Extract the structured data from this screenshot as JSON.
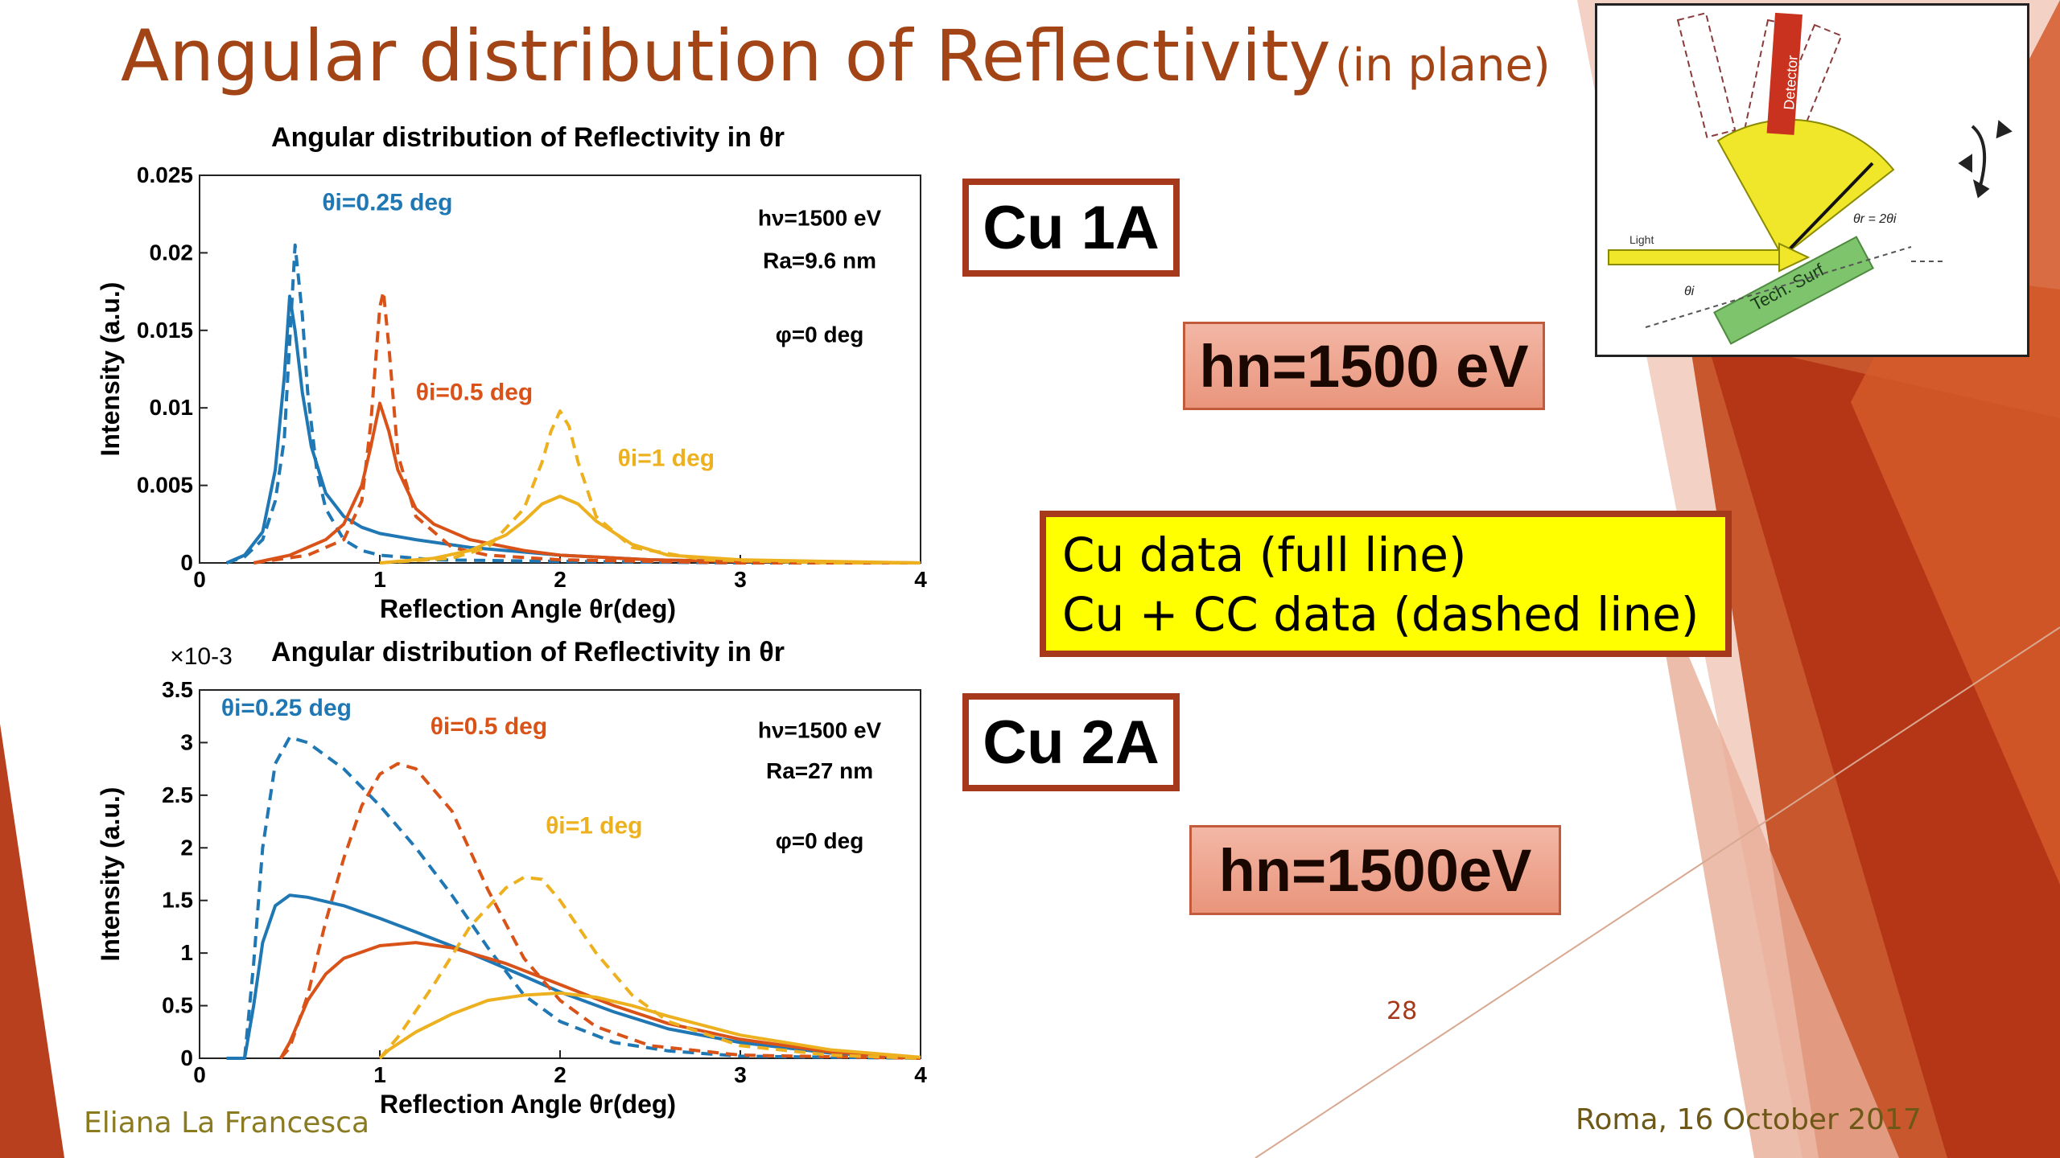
{
  "slide": {
    "title_main": "Angular distribution of Reflectivity",
    "title_sub": "(in plane)",
    "author": "Eliana La Francesca",
    "date": "Roma, 16 October 2017",
    "page_number": "28",
    "cu1_label": "Cu 1A",
    "cu2_label": "Cu 2A",
    "hn1_label": "hn=1500 eV",
    "hn2_label": "hn=1500eV",
    "legend_line1": "Cu data (full line)",
    "legend_line2": "Cu + CC data (dashed line)",
    "colors": {
      "accent": "#a6381c",
      "title": "#a24416",
      "legend_bg": "#ffff00"
    }
  },
  "inset": {
    "detector": "Detector",
    "light": "Light",
    "surface": "Tech. Surf",
    "theta_r": "θr = 2θi",
    "theta_i": "θi"
  },
  "chart_data": [
    {
      "type": "line",
      "title": "Angular distribution of Reflectivity in θr",
      "xlabel": "Reflection Angle θr(deg)",
      "ylabel": "Intensity (a.u.)",
      "xlim": [
        0,
        4
      ],
      "ylim": [
        0,
        0.025
      ],
      "xticks": [
        "0",
        "1",
        "2",
        "3",
        "4"
      ],
      "yticks": [
        "0",
        "0.005",
        "0.01",
        "0.015",
        "0.02",
        "0.025"
      ],
      "annotations": [
        "hν=1500 eV",
        "Ra=9.6 nm",
        "φ=0 deg"
      ],
      "series": [
        {
          "name": "θi=0.25 deg",
          "color": "#1f77b4",
          "dash": false,
          "x": [
            0.15,
            0.25,
            0.35,
            0.42,
            0.47,
            0.5,
            0.53,
            0.57,
            0.62,
            0.7,
            0.8,
            0.9,
            1.0,
            1.2,
            1.5,
            2.0,
            2.5,
            3.0,
            4.0
          ],
          "y": [
            0,
            0.0005,
            0.002,
            0.006,
            0.012,
            0.0172,
            0.015,
            0.011,
            0.0075,
            0.0045,
            0.003,
            0.0023,
            0.0019,
            0.0015,
            0.001,
            0.0005,
            0.0002,
            0.0001,
            0
          ]
        },
        {
          "name": "θi=0.25 deg",
          "color": "#1f77b4",
          "dash": true,
          "x": [
            0.15,
            0.25,
            0.35,
            0.42,
            0.47,
            0.53,
            0.57,
            0.6,
            0.65,
            0.7,
            0.8,
            0.9,
            1.0,
            1.3,
            2.0,
            3.0,
            4.0
          ],
          "y": [
            0,
            0.0004,
            0.0015,
            0.004,
            0.008,
            0.0205,
            0.016,
            0.011,
            0.006,
            0.0035,
            0.0015,
            0.0008,
            0.0005,
            0.0002,
            0.0001,
            0,
            0
          ]
        },
        {
          "name": "θi=0.5 deg",
          "color": "#d95319",
          "dash": false,
          "x": [
            0.3,
            0.5,
            0.7,
            0.8,
            0.9,
            0.95,
            1.0,
            1.05,
            1.1,
            1.2,
            1.3,
            1.5,
            1.8,
            2.0,
            2.5,
            3.0,
            4.0
          ],
          "y": [
            0,
            0.0005,
            0.0015,
            0.0025,
            0.005,
            0.0075,
            0.0103,
            0.0085,
            0.006,
            0.0035,
            0.0025,
            0.0015,
            0.0008,
            0.0005,
            0.0002,
            0.0001,
            0
          ]
        },
        {
          "name": "θi=0.5 deg",
          "color": "#d95319",
          "dash": true,
          "x": [
            0.3,
            0.6,
            0.8,
            0.9,
            0.95,
            1.0,
            1.02,
            1.05,
            1.1,
            1.2,
            1.4,
            1.6,
            2.0,
            2.5,
            3.0,
            4.0
          ],
          "y": [
            0,
            0.0005,
            0.0015,
            0.004,
            0.009,
            0.0165,
            0.0175,
            0.014,
            0.007,
            0.003,
            0.001,
            0.0005,
            0.0002,
            0.0001,
            0,
            0
          ]
        },
        {
          "name": "θi=1 deg",
          "color": "#edb120",
          "dash": false,
          "x": [
            1.0,
            1.3,
            1.5,
            1.7,
            1.8,
            1.9,
            2.0,
            2.1,
            2.2,
            2.4,
            2.6,
            3.0,
            3.5,
            4.0
          ],
          "y": [
            0,
            0.0003,
            0.0008,
            0.0018,
            0.0027,
            0.0038,
            0.0043,
            0.0038,
            0.0027,
            0.0012,
            0.0005,
            0.0002,
            0.0001,
            0
          ]
        },
        {
          "name": "θi=1 deg",
          "color": "#edb120",
          "dash": true,
          "x": [
            1.0,
            1.4,
            1.6,
            1.8,
            1.9,
            1.95,
            2.0,
            2.05,
            2.1,
            2.2,
            2.4,
            2.8,
            3.5,
            4.0
          ],
          "y": [
            0,
            0.0003,
            0.001,
            0.0035,
            0.0065,
            0.0085,
            0.0098,
            0.0088,
            0.0065,
            0.003,
            0.001,
            0.0002,
            0,
            0
          ]
        }
      ]
    },
    {
      "type": "line",
      "title": "Angular distribution of Reflectivity in θr",
      "xlabel": "Reflection Angle θr(deg)",
      "ylabel": "Intensity (a.u.)",
      "xlim": [
        0,
        4
      ],
      "ylim": [
        0,
        3.5
      ],
      "y_multiplier": "×10-3",
      "xticks": [
        "0",
        "1",
        "2",
        "3",
        "4"
      ],
      "yticks": [
        "0",
        "0.5",
        "1",
        "1.5",
        "2",
        "2.5",
        "3",
        "3.5"
      ],
      "annotations": [
        "hν=1500 eV",
        "Ra=27 nm",
        "φ=0 deg"
      ],
      "series": [
        {
          "name": "θi=0.25 deg",
          "color": "#1f77b4",
          "dash": false,
          "x": [
            0.15,
            0.25,
            0.3,
            0.35,
            0.42,
            0.5,
            0.6,
            0.8,
            1.0,
            1.2,
            1.5,
            1.8,
            2.0,
            2.3,
            2.6,
            3.0,
            3.5,
            4.0
          ],
          "y": [
            0,
            0,
            0.5,
            1.1,
            1.45,
            1.55,
            1.53,
            1.45,
            1.33,
            1.2,
            1.0,
            0.78,
            0.63,
            0.44,
            0.28,
            0.15,
            0.05,
            0
          ]
        },
        {
          "name": "θi=0.25 deg",
          "color": "#1f77b4",
          "dash": true,
          "x": [
            0.15,
            0.25,
            0.3,
            0.35,
            0.42,
            0.5,
            0.6,
            0.8,
            1.0,
            1.2,
            1.4,
            1.6,
            1.8,
            2.0,
            2.3,
            2.6,
            3.0,
            4.0
          ],
          "y": [
            0,
            0,
            0.9,
            2.0,
            2.8,
            3.05,
            3.0,
            2.75,
            2.4,
            2.0,
            1.55,
            1.05,
            0.6,
            0.35,
            0.15,
            0.07,
            0.02,
            0
          ]
        },
        {
          "name": "θi=0.5 deg",
          "color": "#d95319",
          "dash": false,
          "x": [
            0.45,
            0.5,
            0.6,
            0.7,
            0.8,
            1.0,
            1.2,
            1.4,
            1.7,
            2.0,
            2.3,
            2.6,
            3.0,
            3.5,
            4.0
          ],
          "y": [
            0,
            0.15,
            0.55,
            0.8,
            0.95,
            1.07,
            1.1,
            1.05,
            0.9,
            0.7,
            0.5,
            0.33,
            0.18,
            0.06,
            0
          ]
        },
        {
          "name": "θi=0.5 deg",
          "color": "#d95319",
          "dash": true,
          "x": [
            0.45,
            0.5,
            0.6,
            0.7,
            0.8,
            0.9,
            1.0,
            1.1,
            1.2,
            1.4,
            1.6,
            1.8,
            2.0,
            2.2,
            2.5,
            3.0,
            4.0
          ],
          "y": [
            0,
            0.1,
            0.6,
            1.3,
            1.9,
            2.4,
            2.7,
            2.8,
            2.75,
            2.35,
            1.6,
            0.95,
            0.55,
            0.3,
            0.12,
            0.03,
            0
          ]
        },
        {
          "name": "θi=1 deg",
          "color": "#edb120",
          "dash": false,
          "x": [
            1.0,
            1.05,
            1.2,
            1.4,
            1.6,
            1.8,
            2.0,
            2.2,
            2.4,
            2.6,
            3.0,
            3.5,
            4.0
          ],
          "y": [
            0,
            0.08,
            0.25,
            0.42,
            0.55,
            0.6,
            0.62,
            0.58,
            0.5,
            0.4,
            0.22,
            0.08,
            0.01
          ]
        },
        {
          "name": "θi=1 deg",
          "color": "#edb120",
          "dash": true,
          "x": [
            1.0,
            1.1,
            1.3,
            1.5,
            1.7,
            1.8,
            1.9,
            2.0,
            2.2,
            2.4,
            2.6,
            3.0,
            3.5,
            4.0
          ],
          "y": [
            0,
            0.2,
            0.7,
            1.25,
            1.62,
            1.72,
            1.7,
            1.5,
            1.0,
            0.6,
            0.35,
            0.12,
            0.03,
            0
          ]
        }
      ]
    }
  ]
}
